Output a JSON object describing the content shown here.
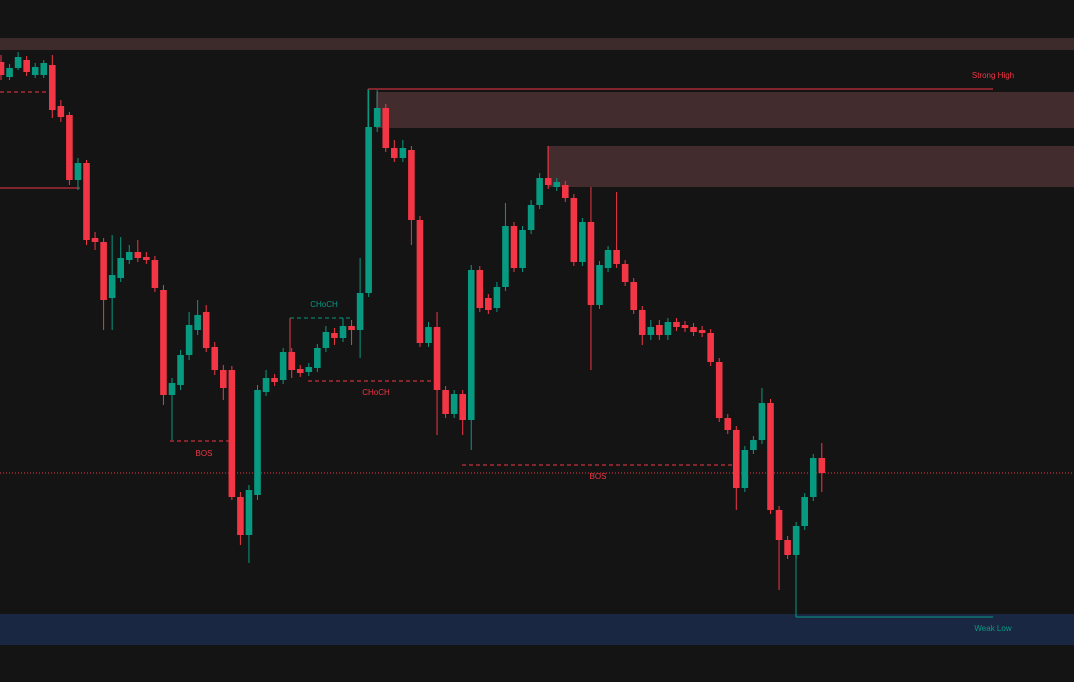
{
  "chart_data": {
    "type": "candlestick",
    "ylim": [
      0,
      682
    ],
    "up_color": "#089981",
    "down_color": "#f23645",
    "open": [
      620,
      605,
      614,
      622,
      607,
      607,
      617,
      576,
      567,
      502,
      519,
      444,
      440,
      384,
      404,
      422,
      430,
      425,
      422,
      392,
      287,
      297,
      327,
      352,
      370,
      335,
      312,
      312,
      185,
      147,
      187,
      290,
      304,
      302,
      330,
      313,
      310,
      314,
      334,
      349,
      344,
      356,
      352,
      389,
      555,
      574,
      534,
      524,
      532,
      462,
      339,
      355,
      292,
      268,
      288,
      262,
      412,
      384,
      374,
      395,
      456,
      414,
      452,
      477,
      504,
      495,
      497,
      484,
      420,
      460,
      377,
      414,
      432,
      418,
      400,
      372,
      347,
      357,
      347,
      360,
      357,
      355,
      352,
      349,
      320,
      264,
      252,
      194,
      232,
      242,
      279,
      172,
      142,
      127,
      156,
      185,
      224
    ],
    "high": [
      627,
      618,
      630,
      626,
      619,
      622,
      627,
      582,
      570,
      524,
      522,
      450,
      444,
      447,
      445,
      437,
      442,
      430,
      426,
      397,
      304,
      332,
      370,
      382,
      377,
      340,
      317,
      316,
      190,
      197,
      297,
      312,
      308,
      334,
      334,
      317,
      319,
      338,
      356,
      354,
      364,
      362,
      424,
      592,
      592,
      578,
      542,
      542,
      536,
      466,
      360,
      370,
      296,
      292,
      292,
      417,
      416,
      388,
      400,
      479,
      460,
      456,
      482,
      509,
      536,
      504,
      501,
      488,
      464,
      495,
      421,
      436,
      490,
      422,
      404,
      376,
      362,
      362,
      364,
      364,
      361,
      359,
      356,
      353,
      324,
      268,
      256,
      236,
      246,
      294,
      283,
      176,
      146,
      160,
      189,
      228,
      239
    ],
    "low": [
      602,
      602,
      612,
      606,
      604,
      604,
      564,
      560,
      497,
      492,
      437,
      432,
      352,
      352,
      400,
      418,
      420,
      418,
      390,
      277,
      242,
      292,
      322,
      347,
      330,
      307,
      282,
      182,
      137,
      119,
      182,
      286,
      296,
      298,
      304,
      305,
      306,
      310,
      330,
      337,
      340,
      337,
      324,
      385,
      550,
      530,
      520,
      520,
      437,
      335,
      335,
      247,
      264,
      264,
      247,
      232,
      370,
      368,
      370,
      391,
      410,
      410,
      448,
      473,
      493,
      491,
      480,
      416,
      416,
      312,
      373,
      410,
      414,
      396,
      368,
      337,
      342,
      342,
      342,
      351,
      350,
      346,
      345,
      316,
      260,
      248,
      172,
      190,
      228,
      238,
      168,
      92,
      123,
      123,
      152,
      181,
      190
    ],
    "close": [
      607,
      614,
      625,
      610,
      615,
      619,
      572,
      565,
      502,
      519,
      442,
      440,
      382,
      407,
      424,
      430,
      424,
      422,
      394,
      287,
      299,
      327,
      357,
      367,
      334,
      312,
      294,
      185,
      147,
      192,
      292,
      304,
      300,
      330,
      312,
      309,
      315,
      334,
      350,
      344,
      356,
      352,
      389,
      555,
      574,
      534,
      524,
      534,
      462,
      339,
      355,
      292,
      268,
      288,
      262,
      412,
      374,
      372,
      395,
      456,
      414,
      452,
      477,
      504,
      497,
      500,
      484,
      420,
      460,
      377,
      417,
      432,
      418,
      400,
      372,
      347,
      355,
      347,
      360,
      355,
      354,
      350,
      349,
      320,
      264,
      252,
      194,
      232,
      242,
      279,
      172,
      142,
      127,
      156,
      185,
      224,
      209
    ],
    "zones": [
      {
        "from": 632,
        "to": 644,
        "color": "#3d2a2b"
      },
      {
        "from": 554,
        "to": 590,
        "color": "#432c2d"
      },
      {
        "from": 495,
        "to": 536,
        "color": "#432c2d"
      },
      {
        "from": 37,
        "to": 68,
        "color": "#1a2742"
      }
    ],
    "levels": [
      {
        "text": "Strong High",
        "value": 593,
        "color": "#f23645"
      },
      {
        "text": "Weak Low",
        "value": 65,
        "color": "#089981"
      },
      {
        "text": "CHoCH",
        "value": 364,
        "color": "#089981"
      },
      {
        "text": "CHoCH",
        "value": 301,
        "color": "#f23645"
      },
      {
        "text": "BOS",
        "value": 241,
        "color": "#f23645"
      },
      {
        "text": "BOS",
        "value": 217,
        "color": "#f23645"
      }
    ],
    "last_price": 209
  }
}
